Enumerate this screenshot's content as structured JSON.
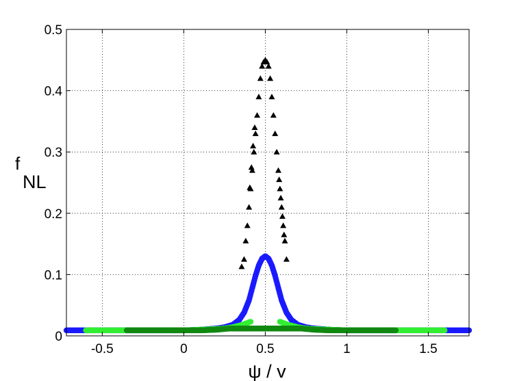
{
  "chart_data": {
    "type": "scatter",
    "title": "",
    "xlabel": "ψ / v",
    "ylabel_main": "f",
    "ylabel_sub": "NL",
    "xlim": [
      -0.72,
      1.75
    ],
    "ylim": [
      0,
      0.5
    ],
    "xticks": [
      -0.5,
      0,
      0.5,
      1,
      1.5
    ],
    "xtick_labels": [
      "-0.5",
      "0",
      "0.5",
      "1",
      "1.5"
    ],
    "yticks": [
      0,
      0.1,
      0.2,
      0.3,
      0.4,
      0.5
    ],
    "ytick_labels": [
      "0",
      "0.1",
      "0.2",
      "0.3",
      "0.4",
      "0.5"
    ],
    "grid": true,
    "grid_style": "dotted",
    "colors": {
      "black_series": "#000000",
      "blue_series": "#1a1aff",
      "green_light": "#33ee33",
      "green_dark": "#118811"
    },
    "series": [
      {
        "marker": "triangle",
        "color": "#000000",
        "points": [
          [
            0.37,
            0.125
          ],
          [
            0.38,
            0.155
          ],
          [
            0.39,
            0.18
          ],
          [
            0.4,
            0.21
          ],
          [
            0.41,
            0.24
          ],
          [
            0.42,
            0.27
          ],
          [
            0.43,
            0.3
          ],
          [
            0.44,
            0.33
          ],
          [
            0.45,
            0.36
          ],
          [
            0.46,
            0.39
          ],
          [
            0.47,
            0.42
          ],
          [
            0.48,
            0.44
          ],
          [
            0.49,
            0.447
          ],
          [
            0.5,
            0.45
          ],
          [
            0.51,
            0.447
          ],
          [
            0.52,
            0.44
          ],
          [
            0.53,
            0.42
          ],
          [
            0.54,
            0.39
          ],
          [
            0.55,
            0.36
          ],
          [
            0.56,
            0.33
          ],
          [
            0.57,
            0.3
          ],
          [
            0.58,
            0.27
          ],
          [
            0.59,
            0.24
          ],
          [
            0.6,
            0.21
          ],
          [
            0.61,
            0.18
          ],
          [
            0.62,
            0.155
          ],
          [
            0.63,
            0.125
          ],
          [
            0.355,
            0.113
          ],
          [
            0.405,
            0.242
          ],
          [
            0.415,
            0.275
          ],
          [
            0.425,
            0.31
          ],
          [
            0.435,
            0.34
          ],
          [
            0.585,
            0.255
          ],
          [
            0.595,
            0.225
          ],
          [
            0.605,
            0.195
          ],
          [
            0.615,
            0.165
          ]
        ]
      },
      {
        "marker": "circle",
        "color": "#1a1aff",
        "x": [
          -0.72,
          -0.6,
          -0.5,
          -0.4,
          -0.3,
          -0.2,
          -0.1,
          0,
          0.1,
          0.2,
          0.25,
          0.3,
          0.34,
          0.37,
          0.4,
          0.42,
          0.44,
          0.46,
          0.48,
          0.5,
          0.52,
          0.54,
          0.56,
          0.58,
          0.6,
          0.63,
          0.66,
          0.7,
          0.75,
          0.8,
          0.9,
          1.0,
          1.1,
          1.2,
          1.3,
          1.4,
          1.5,
          1.6,
          1.75
        ],
        "y": [
          0.009,
          0.009,
          0.009,
          0.009,
          0.009,
          0.009,
          0.009,
          0.009,
          0.01,
          0.012,
          0.014,
          0.018,
          0.026,
          0.038,
          0.058,
          0.078,
          0.098,
          0.115,
          0.126,
          0.13,
          0.126,
          0.115,
          0.098,
          0.078,
          0.058,
          0.038,
          0.026,
          0.018,
          0.014,
          0.012,
          0.01,
          0.009,
          0.009,
          0.009,
          0.009,
          0.009,
          0.009,
          0.009,
          0.009
        ]
      },
      {
        "marker": "circle",
        "color": "#33ee33",
        "x": [
          -0.6,
          -0.5,
          -0.4,
          -0.3,
          -0.2,
          -0.1,
          0,
          0.1,
          0.2,
          0.25,
          0.3,
          0.33,
          0.36,
          0.39,
          0.41
        ],
        "y": [
          0.009,
          0.009,
          0.009,
          0.009,
          0.009,
          0.009,
          0.009,
          0.01,
          0.011,
          0.012,
          0.014,
          0.016,
          0.018,
          0.021,
          0.023
        ]
      },
      {
        "marker": "circle",
        "color": "#33ee33",
        "x": [
          0.59,
          0.61,
          0.64,
          0.67,
          0.7,
          0.75,
          0.8,
          0.9,
          1.0,
          1.1,
          1.2,
          1.3,
          1.4,
          1.5,
          1.6
        ],
        "y": [
          0.023,
          0.021,
          0.018,
          0.016,
          0.014,
          0.012,
          0.011,
          0.01,
          0.009,
          0.009,
          0.009,
          0.009,
          0.009,
          0.009,
          0.009
        ]
      },
      {
        "marker": "circle",
        "color": "#118811",
        "x": [
          -0.35,
          -0.2,
          -0.1,
          0,
          0.1,
          0.2,
          0.28,
          0.72,
          0.8,
          0.9,
          1.0,
          1.1,
          1.2,
          1.3
        ],
        "y": [
          0.009,
          0.009,
          0.009,
          0.009,
          0.009,
          0.01,
          0.012,
          0.012,
          0.01,
          0.009,
          0.009,
          0.009,
          0.009,
          0.009
        ]
      }
    ]
  }
}
